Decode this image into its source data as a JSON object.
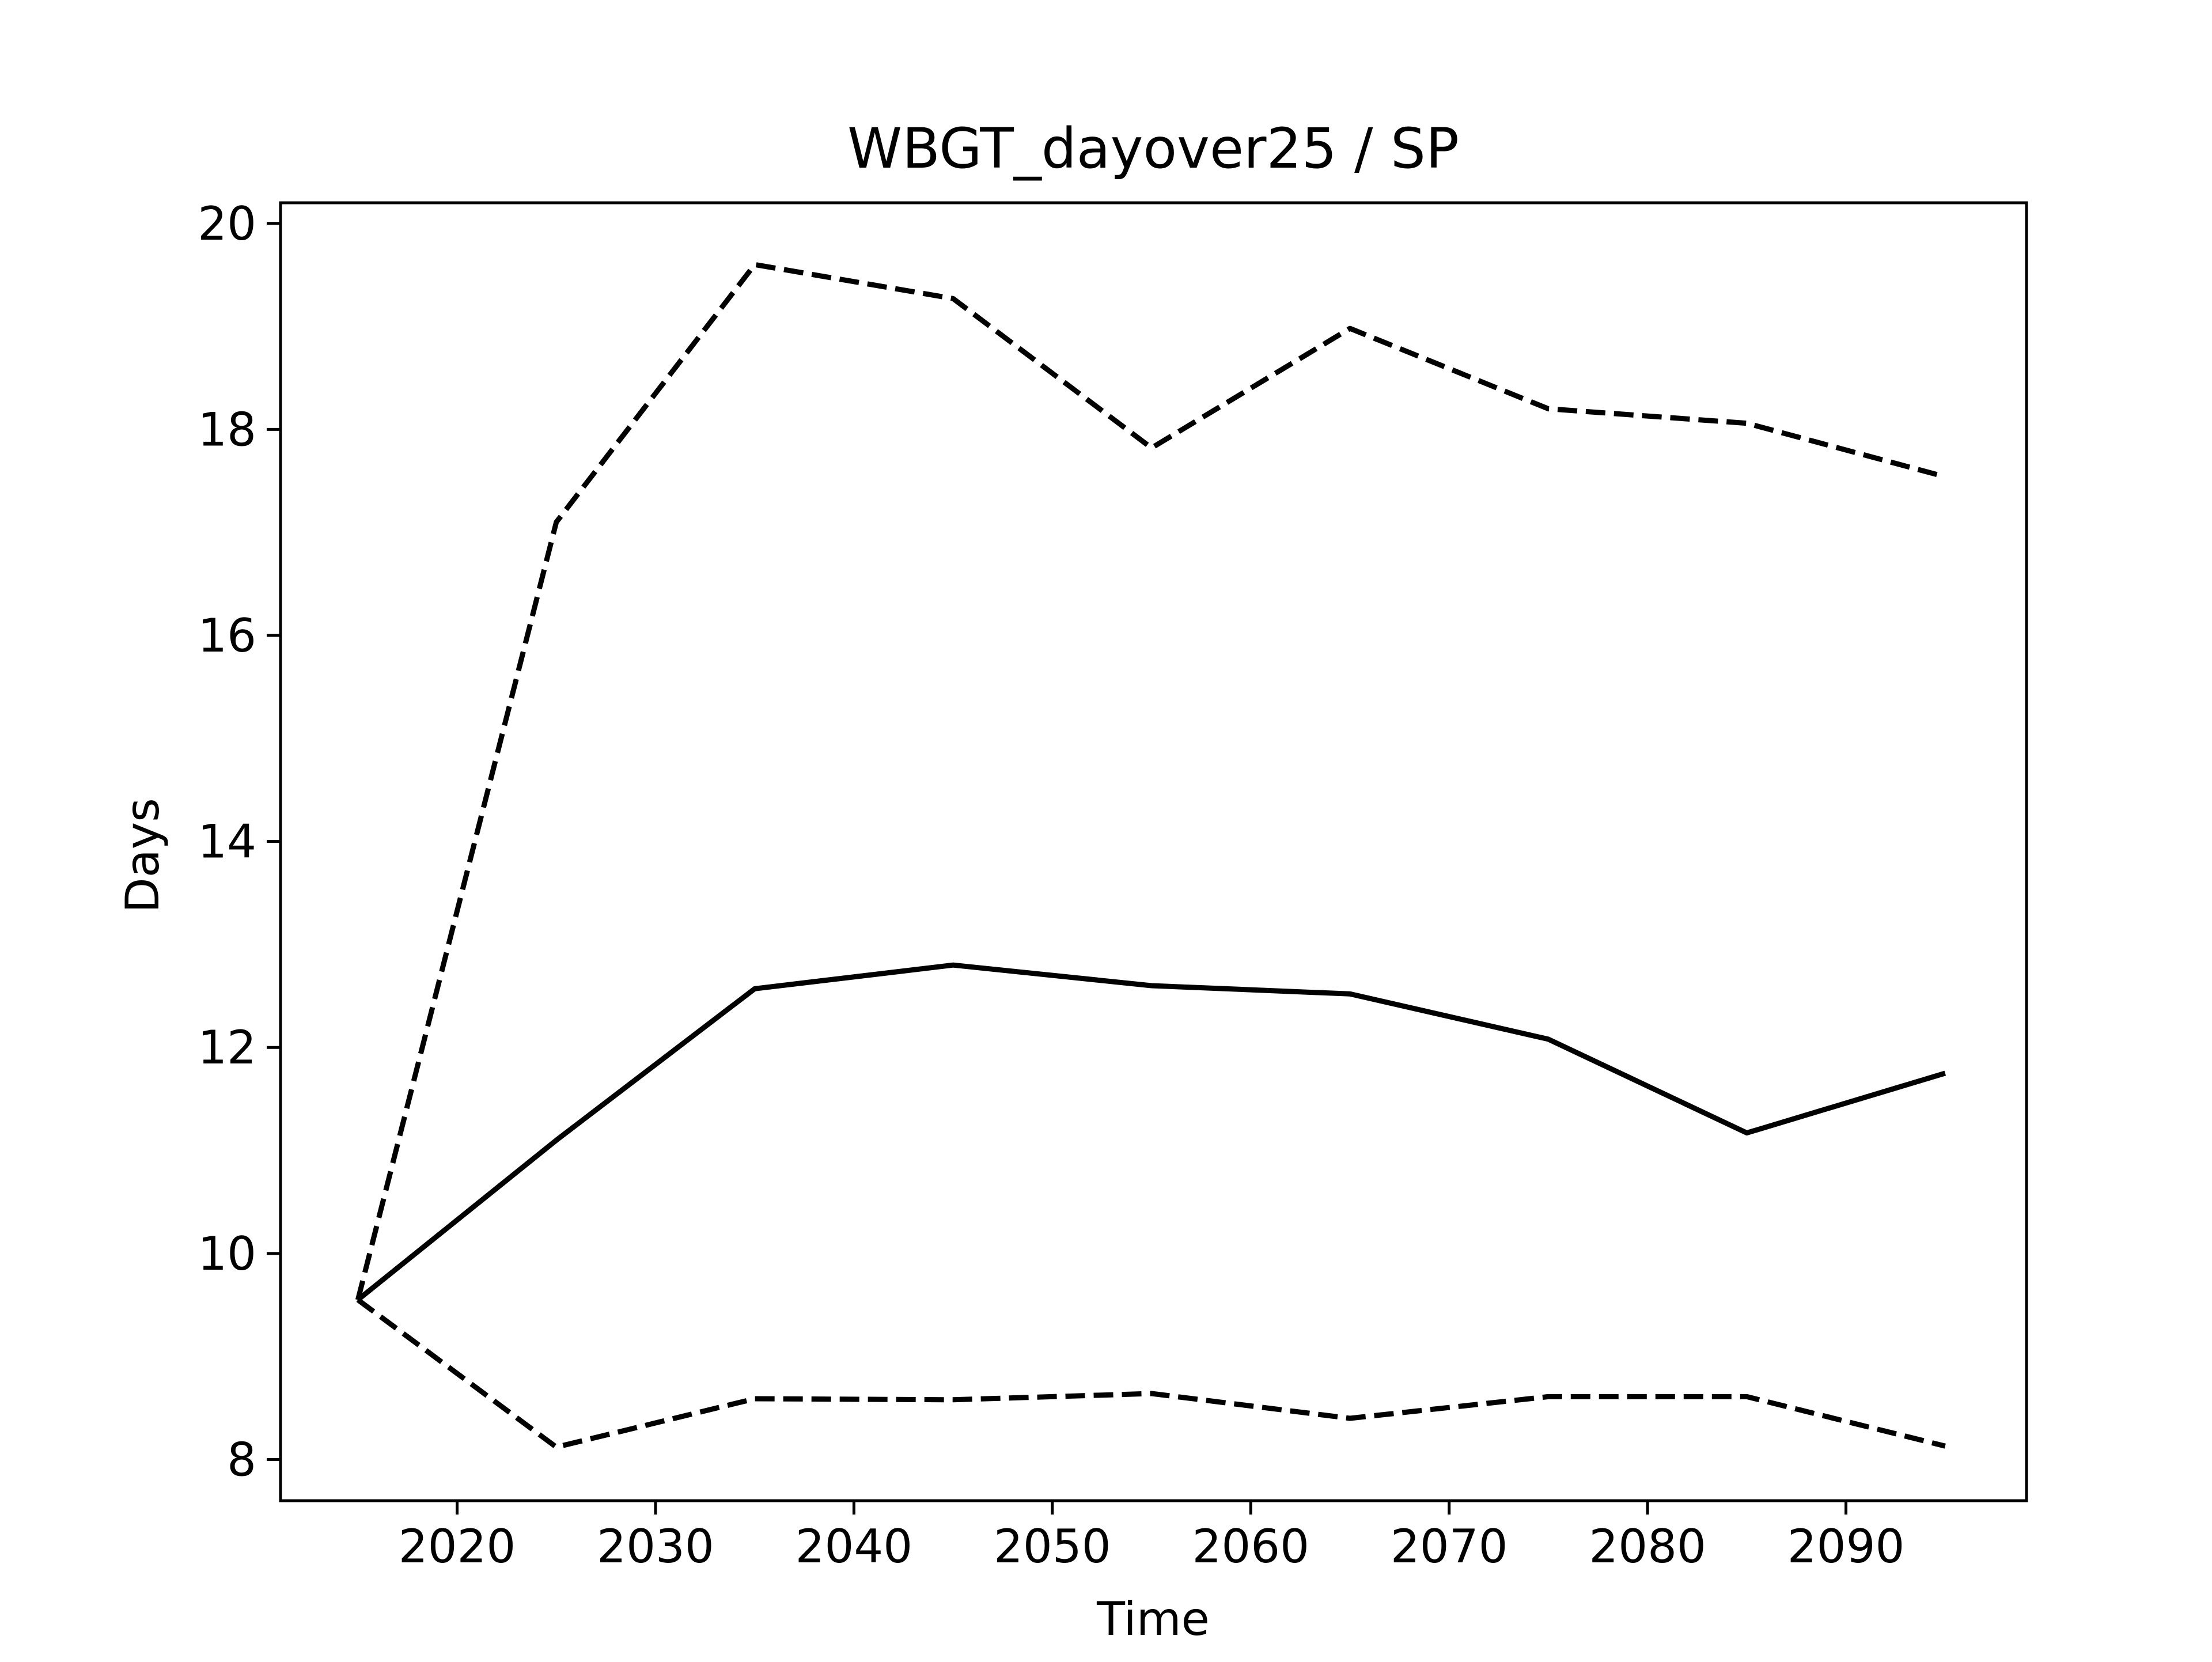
{
  "chart_data": {
    "type": "line",
    "title": "WBGT_dayover25 / SP",
    "xlabel": "Time",
    "ylabel": "Days",
    "xlim": [
      2011.1,
      2099.1
    ],
    "ylim": [
      7.6,
      20.2
    ],
    "xticks": [
      2020,
      2030,
      2040,
      2050,
      2060,
      2070,
      2080,
      2090
    ],
    "yticks": [
      8,
      10,
      12,
      14,
      16,
      18,
      20
    ],
    "grid": false,
    "legend": "none",
    "x": [
      2015,
      2025,
      2035,
      2045,
      2055,
      2065,
      2075,
      2085,
      2095
    ],
    "series": [
      {
        "style": "solid",
        "color": "#000000",
        "values": [
          9.55,
          11.1,
          12.57,
          12.8,
          12.6,
          12.52,
          12.08,
          11.17,
          11.75
        ]
      },
      {
        "style": "dashed",
        "color": "#000000",
        "values": [
          9.55,
          17.1,
          19.6,
          19.27,
          17.82,
          18.98,
          18.2,
          18.06,
          17.54
        ]
      },
      {
        "style": "dashed",
        "color": "#000000",
        "values": [
          9.55,
          8.12,
          8.59,
          8.58,
          8.64,
          8.4,
          8.61,
          8.61,
          8.13
        ]
      }
    ]
  }
}
